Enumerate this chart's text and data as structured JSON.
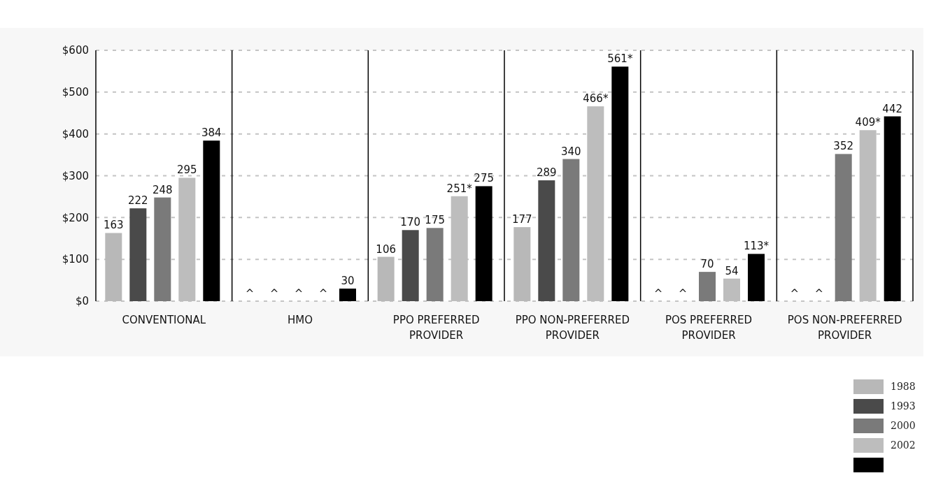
{
  "chart_data": {
    "type": "bar",
    "categories": [
      "CONVENTIONAL",
      "HMO",
      "PPO PREFERRED PROVIDER",
      "PPO NON-PREFERRED PROVIDER",
      "POS PREFERRED PROVIDER",
      "POS NON-PREFERRED PROVIDER"
    ],
    "series": [
      {
        "name": "1988",
        "color": "#b8b8b8",
        "values": [
          163,
          null,
          106,
          177,
          null,
          null
        ],
        "value_labels": [
          "163",
          "^",
          "106",
          "177",
          "^",
          "^"
        ]
      },
      {
        "name": "1993",
        "color": "#4a4a4a",
        "values": [
          222,
          null,
          170,
          289,
          null,
          null
        ],
        "value_labels": [
          "222",
          "^",
          "170",
          "289",
          "^",
          "^"
        ]
      },
      {
        "name": "2000",
        "color": "#7a7a7a",
        "values": [
          248,
          null,
          175,
          340,
          70,
          352
        ],
        "value_labels": [
          "248",
          "^",
          "175",
          "340",
          "70",
          "352"
        ]
      },
      {
        "name": "2002",
        "color": "#bdbdbd",
        "values": [
          295,
          null,
          251,
          466,
          54,
          409
        ],
        "value_labels": [
          "295",
          "^",
          "251*",
          "466*",
          "54",
          "409*"
        ]
      },
      {
        "color": "#000000",
        "values": [
          384,
          30,
          275,
          561,
          113,
          442
        ],
        "value_labels": [
          "384",
          "30",
          "275",
          "561*",
          "113*",
          "442"
        ]
      }
    ],
    "ylim": [
      0,
      600
    ],
    "yticks": [
      {
        "value": 0,
        "label": "$0"
      },
      {
        "value": 100,
        "label": "$100"
      },
      {
        "value": 200,
        "label": "$200"
      },
      {
        "value": 300,
        "label": "$300"
      },
      {
        "value": 400,
        "label": "$400"
      },
      {
        "value": 500,
        "label": "$500"
      },
      {
        "value": 600,
        "label": "$600"
      }
    ],
    "grid": "y",
    "legend": "bottom right"
  }
}
